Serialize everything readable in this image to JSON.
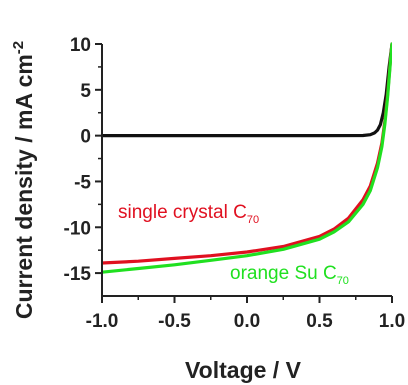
{
  "chart_data": {
    "type": "line",
    "title": "",
    "xlabel": "Voltage / V",
    "ylabel": "Current density / mA cm",
    "ylabel_superscript": "-2",
    "xlim": [
      -1.0,
      1.0
    ],
    "ylim": [
      -17.5,
      10
    ],
    "xticks": [
      "-1.0",
      "-0.5",
      "0.0",
      "0.5",
      "1.0"
    ],
    "xtick_values": [
      -1.0,
      -0.5,
      0.0,
      0.5,
      1.0
    ],
    "yticks": [
      "10",
      "5",
      "0",
      "-5",
      "-10",
      "-15"
    ],
    "ytick_values": [
      10,
      5,
      0,
      -5,
      -10,
      -15
    ],
    "grid": false,
    "series": [
      {
        "color": "#111111",
        "x": [
          -1.0,
          -0.5,
          0.0,
          0.5,
          0.8,
          0.85,
          0.88,
          0.9,
          0.92,
          0.94,
          0.96,
          0.98,
          1.0
        ],
        "y": [
          0,
          0,
          0,
          0,
          0.02,
          0.1,
          0.3,
          0.6,
          1.2,
          2.5,
          4.5,
          7.5,
          10
        ]
      },
      {
        "name": "single crystal C",
        "name_subscript": "70",
        "color": "#e01020",
        "x": [
          -1.0,
          -0.75,
          -0.5,
          -0.25,
          0.0,
          0.25,
          0.5,
          0.6,
          0.7,
          0.8,
          0.85,
          0.9,
          0.93,
          0.95,
          0.97,
          0.99,
          1.0
        ],
        "y": [
          -13.9,
          -13.7,
          -13.4,
          -13.1,
          -12.7,
          -12.1,
          -11.0,
          -10.2,
          -9.0,
          -7.0,
          -5.5,
          -3.0,
          -0.8,
          1.5,
          4.5,
          8.5,
          10
        ]
      },
      {
        "name": "orange Su C",
        "name_subscript": "70",
        "color": "#20e020",
        "x": [
          -1.0,
          -0.75,
          -0.5,
          -0.25,
          0.0,
          0.25,
          0.5,
          0.6,
          0.7,
          0.8,
          0.85,
          0.9,
          0.93,
          0.95,
          0.97,
          0.99,
          1.0
        ],
        "y": [
          -14.9,
          -14.5,
          -14.1,
          -13.6,
          -13.1,
          -12.4,
          -11.3,
          -10.5,
          -9.4,
          -7.5,
          -6.0,
          -3.5,
          -1.2,
          1.2,
          4.2,
          8.3,
          10
        ]
      }
    ],
    "annotations": [
      {
        "series": 1,
        "text": "single crystal C",
        "sub": "70",
        "color": "#e01020"
      },
      {
        "series": 2,
        "text": "orange Su C",
        "sub": "70",
        "color": "#20e020"
      }
    ]
  }
}
